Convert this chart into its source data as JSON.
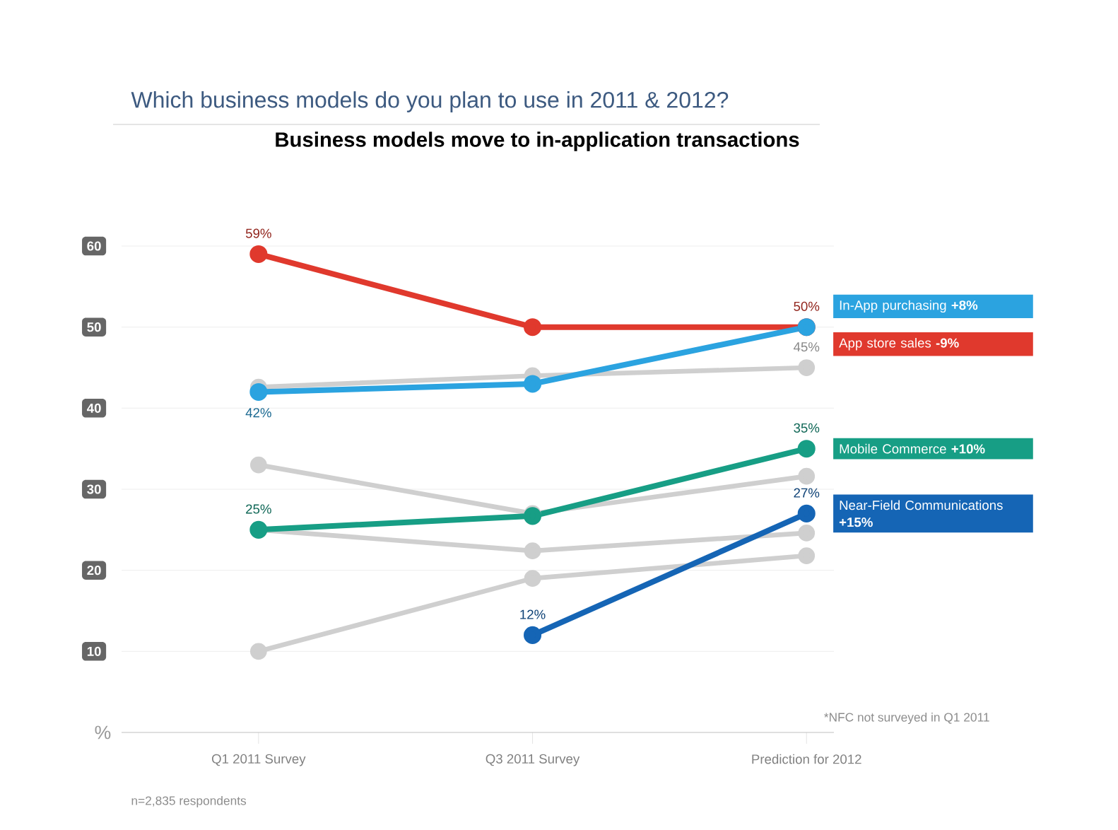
{
  "chart_data": {
    "type": "line",
    "title": "Which business models do you plan to use in 2011 & 2012?",
    "subtitle": "Business models move to in-application transactions",
    "ylabel": "%",
    "categories": [
      "Q1 2011 Survey",
      "Q3 2011 Survey",
      "Prediction for 2012"
    ],
    "series": [
      {
        "color": "#cfcfcf",
        "values": [
          42.6,
          44,
          45
        ],
        "value_labels": [
          null,
          null,
          "45%"
        ]
      },
      {
        "color": "#cfcfcf",
        "values": [
          33,
          27,
          31.6
        ]
      },
      {
        "color": "#cfcfcf",
        "values": [
          25,
          22.4,
          24.6
        ]
      },
      {
        "color": "#cfcfcf",
        "values": [
          10,
          19,
          21.8
        ]
      },
      {
        "name": "App store sales **-9%**",
        "color": "#e0392d",
        "values": [
          59,
          50,
          50
        ],
        "value_labels": [
          "59%",
          null,
          "50%"
        ]
      },
      {
        "name": "In-App purchasing **+8%**",
        "color": "#2ba3e0",
        "values": [
          42,
          43,
          50
        ],
        "value_labels": [
          "42%",
          null,
          null
        ]
      },
      {
        "name": "Mobile Commerce **+10%**",
        "color": "#179e85",
        "values": [
          25,
          26.7,
          35
        ],
        "value_labels": [
          "25%",
          null,
          "35%"
        ]
      },
      {
        "name": "Near-Field Communications **+15%**",
        "color": "#1565b5",
        "values": [
          null,
          12,
          27
        ],
        "value_labels": [
          null,
          "12%",
          "27%"
        ]
      }
    ],
    "ylim": [
      0,
      60
    ],
    "yticks": [
      10,
      20,
      30,
      40,
      50,
      60
    ],
    "grid": "y",
    "marker": "circle",
    "line_style": "solid",
    "annotations": [
      "*NFC not surveyed in Q1 2011",
      "n=2,835 respondents"
    ]
  }
}
